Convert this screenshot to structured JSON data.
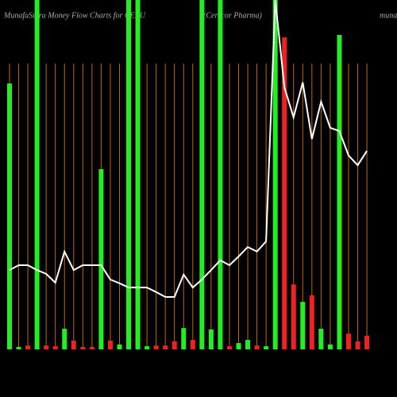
{
  "chart_data": {
    "type": "bar",
    "title": "MunafaSutra  Money Flow  Charts for CERU",
    "subtitle": "(Cerecor  Pharma)",
    "site": "munafasutra.com",
    "categories": [
      null,
      null,
      null,
      null,
      null,
      null,
      null,
      null,
      null,
      null,
      null,
      null,
      null,
      null,
      null,
      null,
      null,
      null,
      null,
      null,
      null,
      null,
      null,
      null,
      null,
      null,
      null,
      null,
      null,
      null,
      null,
      null,
      null,
      null,
      null,
      null,
      null,
      null,
      null,
      null
    ],
    "values": [
      76.1,
      0.7,
      1.1,
      100,
      1.1,
      0.9,
      5.9,
      2.5,
      0.7,
      0.7,
      51.6,
      2.5,
      1.4,
      100,
      100,
      0.9,
      1.1,
      1.1,
      2.3,
      6.1,
      2.7,
      100,
      5.7,
      100,
      0.9,
      1.8,
      2.7,
      1.1,
      0.9,
      100,
      89.3,
      18.6,
      13.6,
      15.5,
      5.9,
      1.4,
      90,
      4.5,
      2.3,
      3.9
    ],
    "colors": [
      "#22ee22",
      "#22ee22",
      "#ee2222",
      "#22ee22",
      "#ee2222",
      "#ee2222",
      "#22ee22",
      "#ee2222",
      "#ee2222",
      "#ee2222",
      "#22ee22",
      "#ee2222",
      "#22ee22",
      "#22ee22",
      "#22ee22",
      "#22ee22",
      "#ee2222",
      "#ee2222",
      "#ee2222",
      "#22ee22",
      "#ee2222",
      "#22ee22",
      "#22ee22",
      "#22ee22",
      "#ee2222",
      "#22ee22",
      "#22ee22",
      "#ee2222",
      "#22ee22",
      "#22ee22",
      "#ee2222",
      "#ee2222",
      "#22ee22",
      "#ee2222",
      "#22ee22",
      "#22ee22",
      "#22ee22",
      "#ee2222",
      "#ee2222",
      "#ee2222"
    ],
    "line": {
      "color": "#ffffff",
      "values": [
        22.7,
        24.1,
        24.1,
        22.7,
        21.6,
        19.1,
        28,
        22.7,
        24.1,
        24.1,
        24.1,
        20,
        18.9,
        17.7,
        17.7,
        17.7,
        16.4,
        15,
        15,
        21.4,
        17.7,
        20,
        22.7,
        25.5,
        24.1,
        26.6,
        29.3,
        28,
        30.9,
        100,
        75,
        66.4,
        76.4,
        60.2,
        70.9,
        63.4,
        62.5,
        55.5,
        52.7,
        56.8
      ]
    },
    "ylim": [
      0,
      100
    ],
    "grid_color": "#b86a10"
  }
}
